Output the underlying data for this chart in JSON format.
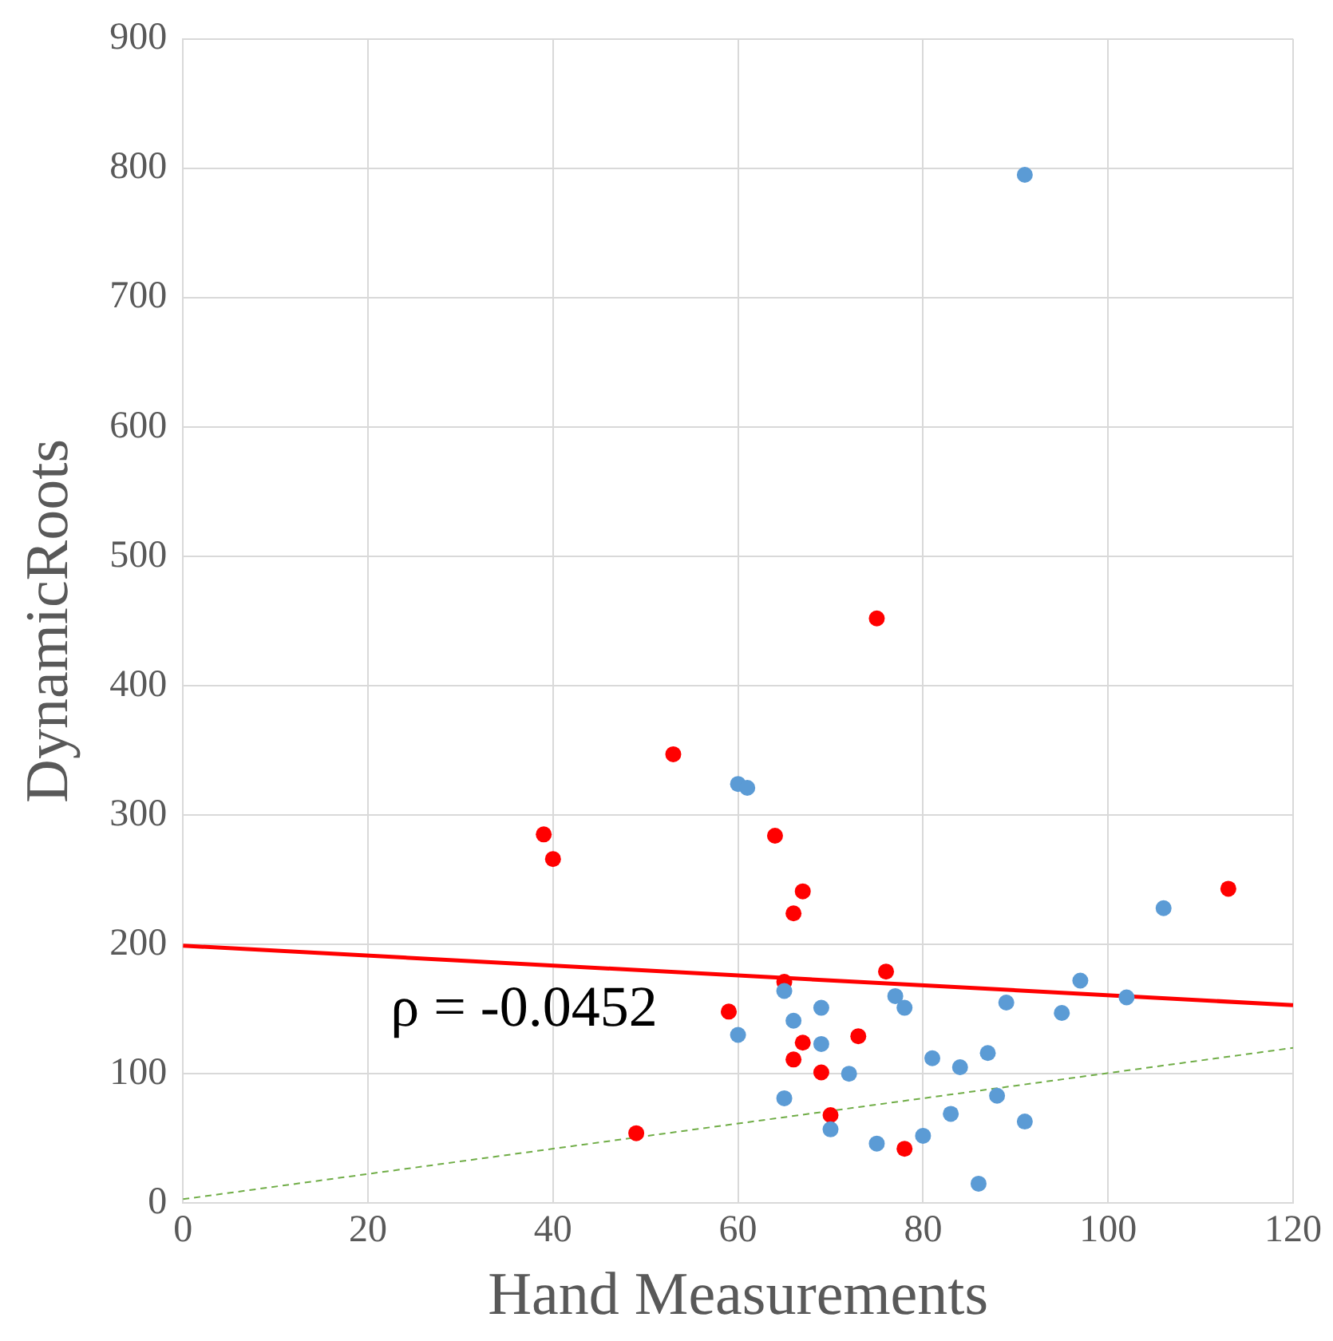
{
  "chart_data": {
    "type": "scatter",
    "xlabel": "Hand Measurements",
    "ylabel": "DynamicRoots",
    "xlim": [
      0,
      120
    ],
    "ylim": [
      0,
      900
    ],
    "xticks": [
      0,
      20,
      40,
      60,
      80,
      100,
      120
    ],
    "yticks": [
      0,
      100,
      200,
      300,
      400,
      500,
      600,
      700,
      800,
      900
    ],
    "grid": true,
    "legend": false,
    "marker": "circle",
    "annotations": [
      "ρ = -0.0452"
    ],
    "series": [
      {
        "color": "#5b9bd5",
        "x": [
          60,
          61,
          60,
          65,
          65,
          66,
          69,
          69,
          70,
          72,
          75,
          77,
          78,
          80,
          81,
          83,
          84,
          86,
          87,
          88,
          89,
          91,
          91,
          95,
          97,
          102,
          106
        ],
        "values": [
          324,
          321,
          130,
          164,
          81,
          141,
          151,
          123,
          57,
          100,
          46,
          160,
          151,
          52,
          112,
          69,
          105,
          15,
          116,
          83,
          155,
          795,
          63,
          147,
          172,
          159,
          228
        ]
      },
      {
        "color": "#ff0000",
        "x": [
          39,
          40,
          49,
          53,
          59,
          64,
          65,
          66,
          66,
          67,
          67,
          69,
          70,
          73,
          75,
          76,
          78,
          113
        ],
        "values": [
          285,
          266,
          54,
          347,
          148,
          284,
          171,
          224,
          111,
          241,
          124,
          101,
          68,
          129,
          452,
          179,
          42,
          243
        ]
      },
      {
        "type": "line",
        "color": "#ff0000",
        "marker": "none",
        "line_style": "solid",
        "x": [
          0,
          120
        ],
        "values": [
          199,
          153
        ]
      },
      {
        "type": "line",
        "color": "#70ad47",
        "marker": "none",
        "line_style": "dashed",
        "x": [
          0,
          120
        ],
        "values": [
          3,
          120
        ]
      }
    ]
  }
}
